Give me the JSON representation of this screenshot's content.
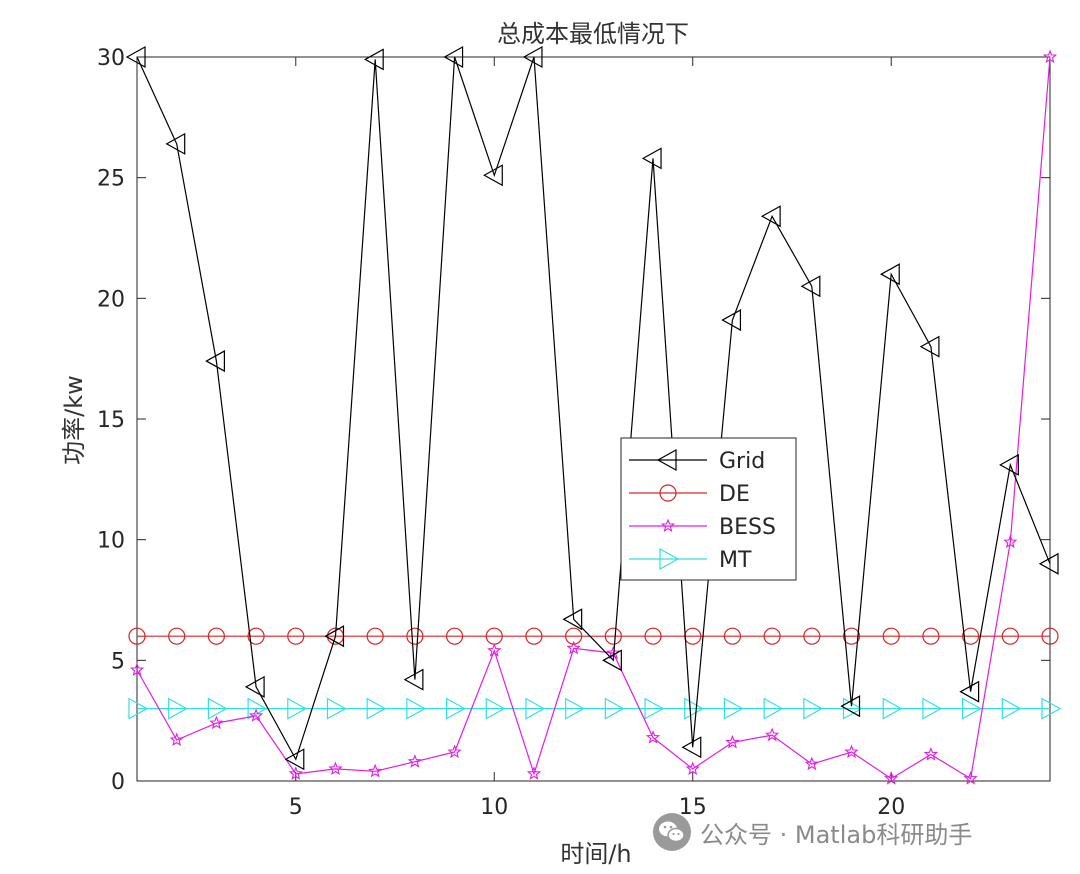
{
  "chart_data": {
    "type": "line",
    "title": "总成本最低情况下",
    "xlabel": "时间/h",
    "ylabel": "功率/kw",
    "xlim": [
      1,
      24
    ],
    "ylim": [
      0,
      30
    ],
    "xticks": [
      5,
      10,
      15,
      20
    ],
    "yticks": [
      0,
      5,
      10,
      15,
      20,
      25,
      30
    ],
    "legend_position": "center-right",
    "x": [
      1,
      2,
      3,
      4,
      5,
      6,
      7,
      8,
      9,
      10,
      11,
      12,
      13,
      14,
      15,
      16,
      17,
      18,
      19,
      20,
      21,
      22,
      23,
      24
    ],
    "series": [
      {
        "name": "Grid",
        "color": "#000000",
        "marker": "triangle-left",
        "values": [
          30,
          26.4,
          17.4,
          3.9,
          0.9,
          6.0,
          29.9,
          4.2,
          30,
          25.1,
          30,
          6.7,
          5.0,
          25.8,
          1.4,
          19.1,
          23.4,
          20.5,
          3.1,
          21.0,
          18.0,
          3.7,
          13.1,
          9.0
        ]
      },
      {
        "name": "DE",
        "color": "#d62728",
        "marker": "circle",
        "values": [
          6,
          6,
          6,
          6,
          6,
          6,
          6,
          6,
          6,
          6,
          6,
          6,
          6,
          6,
          6,
          6,
          6,
          6,
          6,
          6,
          6,
          6,
          6,
          6
        ]
      },
      {
        "name": "BESS",
        "color": "#e31ce3",
        "marker": "star",
        "values": [
          4.6,
          1.7,
          2.4,
          2.7,
          0.3,
          0.5,
          0.4,
          0.8,
          1.2,
          5.4,
          0.3,
          5.5,
          5.3,
          1.8,
          0.5,
          1.6,
          1.9,
          0.7,
          1.2,
          0.1,
          1.1,
          0.1,
          9.9,
          30
        ]
      },
      {
        "name": "MT",
        "color": "#33e0e0",
        "marker": "triangle-right",
        "values": [
          3,
          3,
          3,
          3,
          3,
          3,
          3,
          3,
          3,
          3,
          3,
          3,
          3,
          3,
          3,
          3,
          3,
          3,
          3,
          3,
          3,
          3,
          3,
          3
        ]
      }
    ]
  },
  "watermark": {
    "text": "公众号 · Matlab科研助手",
    "icon": "wechat-icon"
  }
}
